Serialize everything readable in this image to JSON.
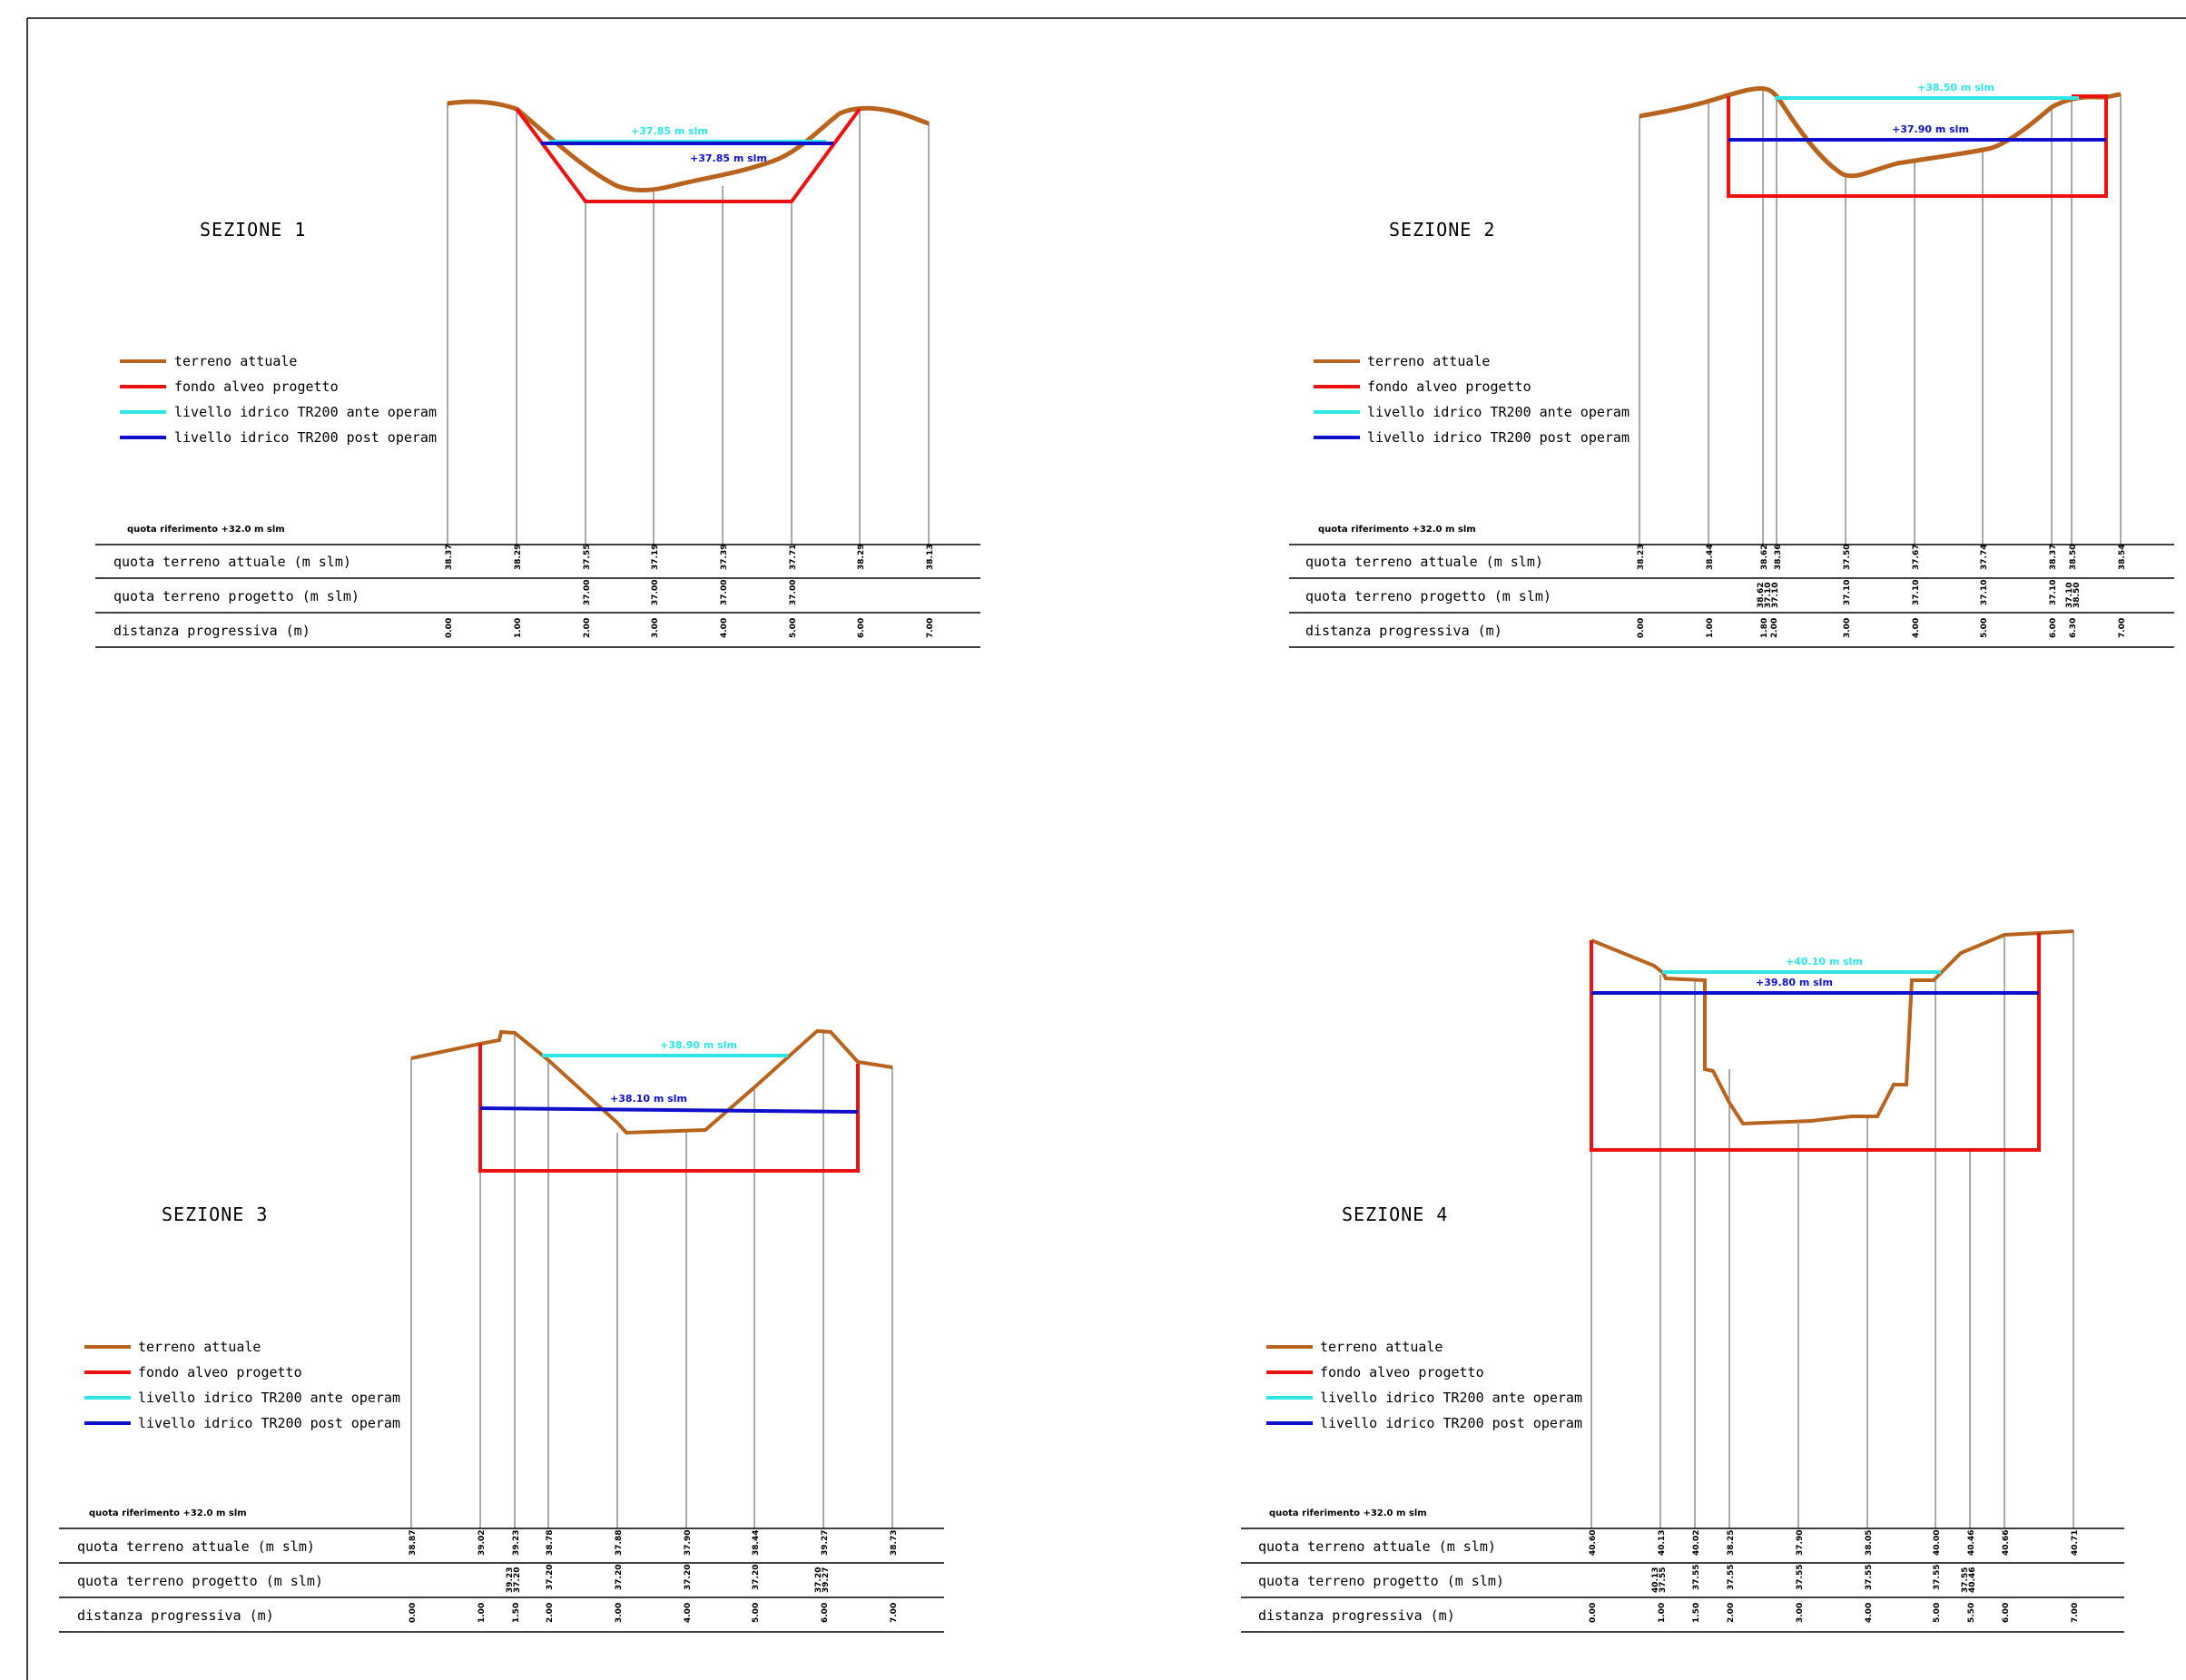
{
  "colors": {
    "terrain": "#b8641e",
    "project": "#ee1111",
    "ante": "#2ee6e6",
    "post": "#1010cc",
    "vline": "#555555",
    "table": "#000000"
  },
  "legend": {
    "terreno": "terreno attuale",
    "fondo": "fondo alveo progetto",
    "ante": "livello idrico TR200 ante operam",
    "post": "livello idrico TR200 post operam"
  },
  "rows": {
    "attuale": "quota terreno attuale (m slm)",
    "progetto": "quota terreno progetto (m slm)",
    "distanza": "distanza progressiva (m)"
  },
  "ref_label": "quota riferimento +32.0 m slm",
  "sections": [
    {
      "title": "SEZIONE 1",
      "ante_label": "+37.85 m slm",
      "post_label": "+37.85 m slm",
      "ante_level": 37.85,
      "post_level": 37.85,
      "columns": [
        {
          "dist": "0.00",
          "attuale": "38.37",
          "progetto": ""
        },
        {
          "dist": "1.00",
          "attuale": "38.29",
          "progetto": ""
        },
        {
          "dist": "2.00",
          "attuale": "37.55",
          "progetto": "37.00"
        },
        {
          "dist": "3.00",
          "attuale": "37.19",
          "progetto": "37.00"
        },
        {
          "dist": "4.00",
          "attuale": "37.39",
          "progetto": "37.00"
        },
        {
          "dist": "5.00",
          "attuale": "37.71",
          "progetto": "37.00"
        },
        {
          "dist": "6.00",
          "attuale": "38.29",
          "progetto": ""
        },
        {
          "dist": "7.00",
          "attuale": "38.13",
          "progetto": ""
        }
      ]
    },
    {
      "title": "SEZIONE 2",
      "ante_label": "+38.50 m slm",
      "post_label": "+37.90 m slm",
      "ante_level": 38.5,
      "post_level": 37.9,
      "columns": [
        {
          "dist": "0.00",
          "attuale": "38.23",
          "progetto": ""
        },
        {
          "dist": "1.00",
          "attuale": "38.44",
          "progetto": ""
        },
        {
          "dist": "1.80",
          "attuale": "38.62",
          "progetto": "38.62"
        },
        {
          "dist": "1.80",
          "attuale": "",
          "progetto": "37.10"
        },
        {
          "dist": "2.00",
          "attuale": "38.36",
          "progetto": "37.10"
        },
        {
          "dist": "3.00",
          "attuale": "37.50",
          "progetto": "37.10"
        },
        {
          "dist": "4.00",
          "attuale": "37.67",
          "progetto": "37.10"
        },
        {
          "dist": "5.00",
          "attuale": "37.74",
          "progetto": "37.10"
        },
        {
          "dist": "6.00",
          "attuale": "38.37",
          "progetto": "37.10"
        },
        {
          "dist": "6.30",
          "attuale": "38.50",
          "progetto": "37.10"
        },
        {
          "dist": "6.30",
          "attuale": "",
          "progetto": "38.50"
        },
        {
          "dist": "7.00",
          "attuale": "38.54",
          "progetto": ""
        }
      ]
    },
    {
      "title": "SEZIONE 3",
      "ante_label": "+38.90 m slm",
      "post_label": "+38.10 m slm",
      "ante_level": 38.9,
      "post_level": 38.1,
      "columns": [
        {
          "dist": "0.00",
          "attuale": "38.87",
          "progetto": ""
        },
        {
          "dist": "1.00",
          "attuale": "39.02",
          "progetto": ""
        },
        {
          "dist": "1.50",
          "attuale": "39.23",
          "progetto": "39.23"
        },
        {
          "dist": "1.50",
          "attuale": "",
          "progetto": "37.20"
        },
        {
          "dist": "2.00",
          "attuale": "38.78",
          "progetto": "37.20"
        },
        {
          "dist": "3.00",
          "attuale": "37.88",
          "progetto": "37.20"
        },
        {
          "dist": "4.00",
          "attuale": "37.90",
          "progetto": "37.20"
        },
        {
          "dist": "5.00",
          "attuale": "38.44",
          "progetto": "37.20"
        },
        {
          "dist": "6.00",
          "attuale": "39.27",
          "progetto": "37.20"
        },
        {
          "dist": "6.00",
          "attuale": "",
          "progetto": "39.27"
        },
        {
          "dist": "7.00",
          "attuale": "38.73",
          "progetto": ""
        }
      ]
    },
    {
      "title": "SEZIONE 4",
      "ante_label": "+40.10 m slm",
      "post_label": "+39.80 m slm",
      "ante_level": 40.1,
      "post_level": 39.8,
      "columns": [
        {
          "dist": "0.00",
          "attuale": "40.60",
          "progetto": ""
        },
        {
          "dist": "1.00",
          "attuale": "40.13",
          "progetto": "40.13"
        },
        {
          "dist": "1.00",
          "attuale": "",
          "progetto": "37.55"
        },
        {
          "dist": "1.50",
          "attuale": "40.02",
          "progetto": "37.55"
        },
        {
          "dist": "2.00",
          "attuale": "38.25",
          "progetto": "37.55"
        },
        {
          "dist": "3.00",
          "attuale": "37.90",
          "progetto": "37.55"
        },
        {
          "dist": "4.00",
          "attuale": "38.05",
          "progetto": "37.55"
        },
        {
          "dist": "5.00",
          "attuale": "40.00",
          "progetto": "37.55"
        },
        {
          "dist": "5.50",
          "attuale": "40.46",
          "progetto": "37.55"
        },
        {
          "dist": "5.50",
          "attuale": "",
          "progetto": "40.46"
        },
        {
          "dist": "6.00",
          "attuale": "40.66",
          "progetto": ""
        },
        {
          "dist": "7.00",
          "attuale": "40.71",
          "progetto": ""
        }
      ]
    }
  ]
}
